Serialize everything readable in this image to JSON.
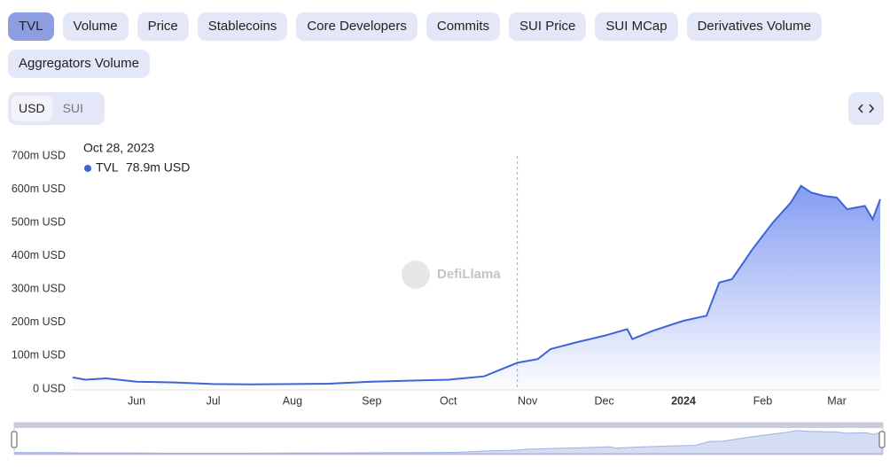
{
  "tabs": [
    "TVL",
    "Volume",
    "Price",
    "Stablecoins",
    "Core Developers",
    "Commits",
    "SUI Price",
    "SUI MCap",
    "Derivatives Volume",
    "Aggregators Volume"
  ],
  "active_tab": 0,
  "currency_toggle": [
    "USD",
    "SUI"
  ],
  "active_currency": 0,
  "watermark": "DefiLlama",
  "chart_data": {
    "type": "line",
    "x": [
      "2023-05-07",
      "2023-05-12",
      "2023-05-20",
      "2023-06-01",
      "2023-06-15",
      "2023-07-01",
      "2023-07-15",
      "2023-08-01",
      "2023-08-15",
      "2023-09-01",
      "2023-09-15",
      "2023-10-01",
      "2023-10-15",
      "2023-10-28",
      "2023-11-05",
      "2023-11-10",
      "2023-11-20",
      "2023-12-01",
      "2023-12-10",
      "2023-12-12",
      "2023-12-20",
      "2024-01-01",
      "2024-01-10",
      "2024-01-15",
      "2024-01-20",
      "2024-01-28",
      "2024-02-05",
      "2024-02-12",
      "2024-02-16",
      "2024-02-20",
      "2024-02-25",
      "2024-03-01",
      "2024-03-05",
      "2024-03-12",
      "2024-03-15",
      "2024-03-18"
    ],
    "series": [
      {
        "name": "TVL",
        "color": "#3f63d8",
        "values": [
          35000000,
          28000000,
          32000000,
          22000000,
          20000000,
          15000000,
          14000000,
          15000000,
          16000000,
          22000000,
          25000000,
          28000000,
          38000000,
          78900000,
          90000000,
          120000000,
          140000000,
          160000000,
          180000000,
          150000000,
          175000000,
          205000000,
          220000000,
          320000000,
          330000000,
          420000000,
          500000000,
          560000000,
          610000000,
          590000000,
          580000000,
          575000000,
          540000000,
          550000000,
          510000000,
          570000000
        ]
      }
    ],
    "xlim": [
      "2023-05-07",
      "2024-03-18"
    ],
    "xticks": [
      {
        "value": "2023-06-01",
        "label": "Jun"
      },
      {
        "value": "2023-07-01",
        "label": "Jul"
      },
      {
        "value": "2023-08-01",
        "label": "Aug"
      },
      {
        "value": "2023-09-01",
        "label": "Sep"
      },
      {
        "value": "2023-10-01",
        "label": "Oct"
      },
      {
        "value": "2023-11-01",
        "label": "Nov"
      },
      {
        "value": "2023-12-01",
        "label": "Dec"
      },
      {
        "value": "2024-01-01",
        "label": "2024"
      },
      {
        "value": "2024-02-01",
        "label": "Feb"
      },
      {
        "value": "2024-03-01",
        "label": "Mar"
      }
    ],
    "ylim": [
      0,
      700000000
    ],
    "yticks": [
      {
        "value": 0,
        "label": "0 USD"
      },
      {
        "value": 100000000,
        "label": "100m USD"
      },
      {
        "value": 200000000,
        "label": "200m USD"
      },
      {
        "value": 300000000,
        "label": "300m USD"
      },
      {
        "value": 400000000,
        "label": "400m USD"
      },
      {
        "value": 500000000,
        "label": "500m USD"
      },
      {
        "value": 600000000,
        "label": "600m USD"
      },
      {
        "value": 700000000,
        "label": "700m USD"
      }
    ],
    "tooltip": {
      "x": "2023-10-28",
      "date_label": "Oct 28, 2023",
      "value": 78900000,
      "label": "78.9m USD"
    }
  }
}
